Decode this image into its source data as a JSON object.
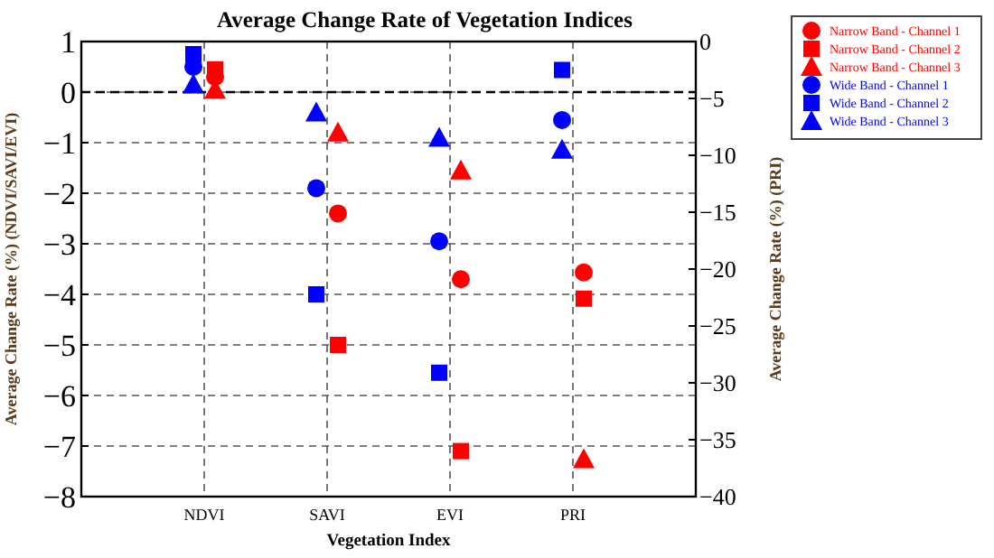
{
  "chart_data": {
    "type": "scatter",
    "title": "Average Change Rate of Vegetation Indices",
    "xlabel": "Vegetation Index",
    "ylabel": "Average Change Rate (%) (NDVI/SAVI/EVI)",
    "y2label": "Average Change Rate (%) (PRI)",
    "categories": [
      "NDVI",
      "SAVI",
      "EVI",
      "PRI"
    ],
    "ylim": [
      -8,
      1
    ],
    "yticks": [
      -8,
      -7,
      -6,
      -5,
      -4,
      -3,
      -2,
      -1,
      0,
      1
    ],
    "y2lim": [
      -40,
      0
    ],
    "y2ticks": [
      -40,
      -35,
      -30,
      -25,
      -20,
      -15,
      -10,
      -5,
      0
    ],
    "grid": true,
    "legend": "top right",
    "ref_lines": [
      {
        "axis": "y",
        "value": 0,
        "color": "#000000",
        "line_style": "dashed"
      }
    ],
    "series": [
      {
        "name": "Narrow Band - Channel 1",
        "color": "#ff0000",
        "marker": "circle",
        "values": [
          0.3,
          -2.4,
          -3.7,
          null
        ]
      },
      {
        "name": "Narrow Band - Channel 2",
        "color": "#ff0000",
        "marker": "square",
        "values": [
          0.45,
          -5.0,
          -7.1,
          null
        ]
      },
      {
        "name": "Narrow Band - Channel 3",
        "color": "#ff0000",
        "marker": "triangle",
        "values": [
          0.05,
          -0.8,
          -1.55,
          null
        ]
      },
      {
        "name": "Wide Band - Channel 1",
        "color": "#0000ff",
        "marker": "circle",
        "values": [
          0.5,
          -1.9,
          -2.95,
          null
        ]
      },
      {
        "name": "Wide Band - Channel 2",
        "color": "#0000ff",
        "marker": "square",
        "values": [
          0.75,
          -4.0,
          -5.55,
          null
        ]
      },
      {
        "name": "Wide Band - Channel 3",
        "color": "#0000ff",
        "marker": "triangle",
        "values": [
          0.15,
          -0.4,
          -0.9,
          null
        ]
      },
      {
        "color": "#ff0000",
        "marker": "circle",
        "axis": "y2",
        "values": [
          null,
          null,
          null,
          -20.3
        ]
      },
      {
        "color": "#ff0000",
        "marker": "square",
        "axis": "y2",
        "values": [
          null,
          null,
          null,
          -22.6
        ]
      },
      {
        "color": "#ff0000",
        "marker": "triangle",
        "axis": "y2",
        "values": [
          null,
          null,
          null,
          -36.7
        ]
      },
      {
        "color": "#0000ff",
        "marker": "circle",
        "axis": "y2",
        "values": [
          null,
          null,
          null,
          -6.9
        ]
      },
      {
        "color": "#0000ff",
        "marker": "square",
        "axis": "y2",
        "values": [
          null,
          null,
          null,
          -2.5
        ]
      },
      {
        "color": "#0000ff",
        "marker": "triangle",
        "axis": "y2",
        "values": [
          null,
          null,
          null,
          -9.5
        ]
      }
    ]
  }
}
